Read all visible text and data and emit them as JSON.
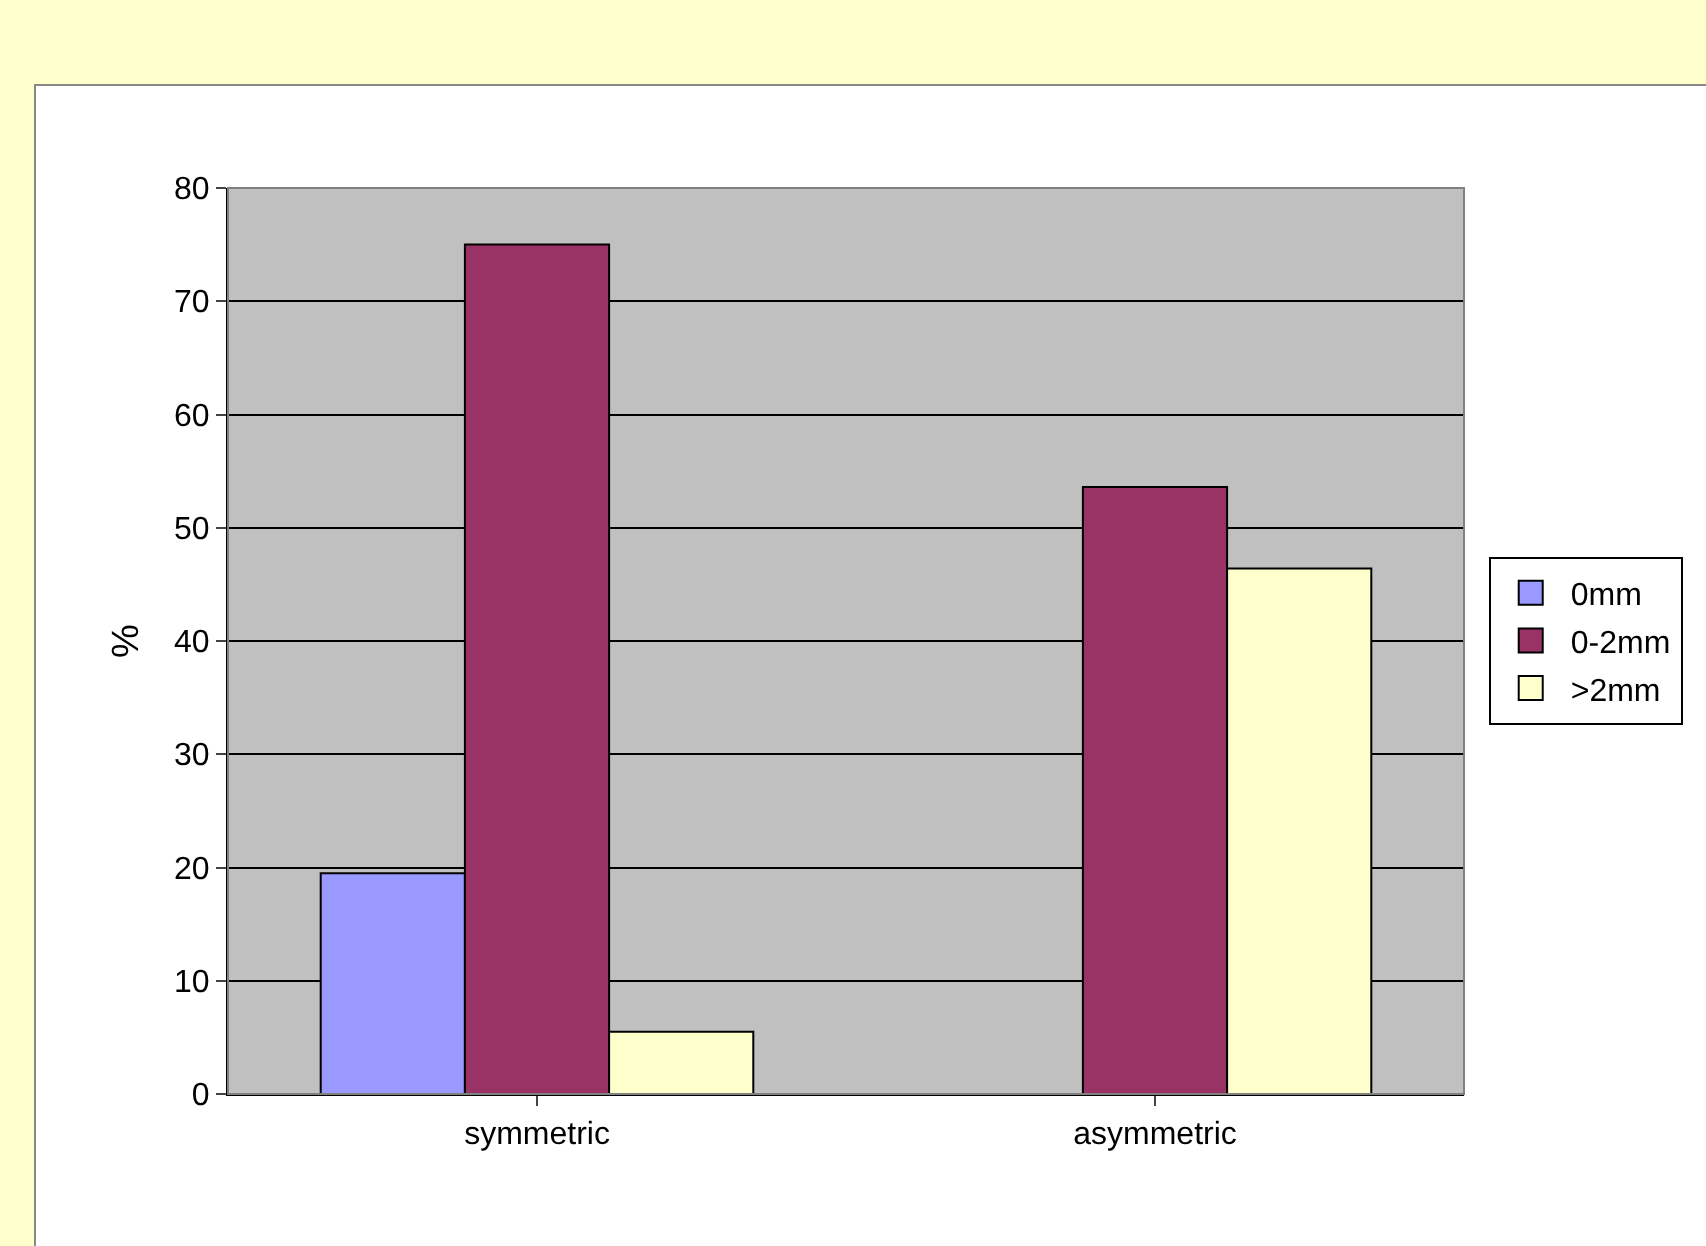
{
  "chart_data": {
    "type": "bar",
    "ylabel": "%",
    "categories": [
      "symmetric",
      "asymmetric"
    ],
    "series": [
      {
        "name": "0mm",
        "color": "#9999ff",
        "values": [
          19.5,
          null
        ]
      },
      {
        "name": "0-2mm",
        "color": "#993366",
        "values": [
          75,
          53.6
        ]
      },
      {
        "name": ">2mm",
        "color": "#ffffcc",
        "values": [
          5.5,
          46.4
        ]
      }
    ],
    "ylim": [
      0,
      80
    ],
    "yticks": [
      0,
      10,
      20,
      30,
      40,
      50,
      60,
      70,
      80
    ],
    "grid": "y",
    "legend": "right"
  }
}
